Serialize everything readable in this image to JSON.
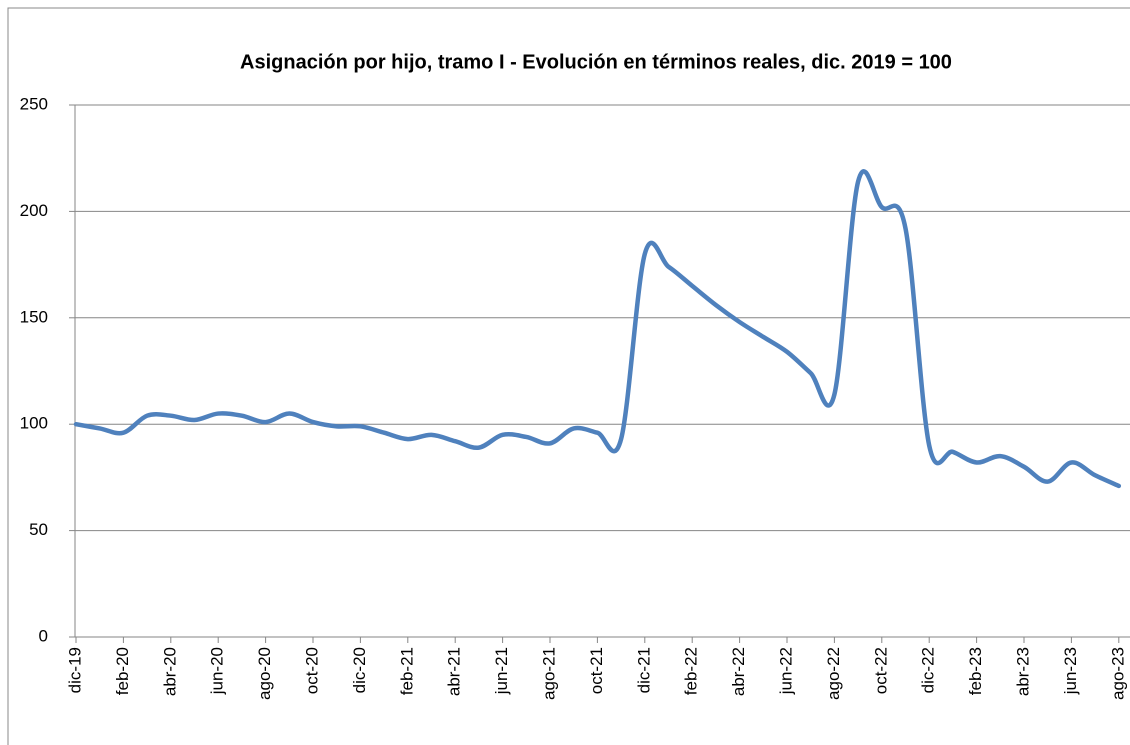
{
  "chart_data": {
    "type": "line",
    "title": "Asignación por hijo, tramo I - Evolución en términos reales, dic. 2019 = 100",
    "categories": [
      "dic-19",
      null,
      "feb-20",
      null,
      "abr-20",
      null,
      "jun-20",
      null,
      "ago-20",
      null,
      "oct-20",
      null,
      "dic-20",
      null,
      "feb-21",
      null,
      "abr-21",
      null,
      "jun-21",
      null,
      "ago-21",
      null,
      "oct-21",
      null,
      "dic-21",
      null,
      "feb-22",
      null,
      "abr-22",
      null,
      "jun-22",
      null,
      "ago-22",
      null,
      "oct-22",
      null,
      "dic-22",
      null,
      "feb-23",
      null,
      "abr-23",
      null,
      "jun-23",
      null,
      "ago-23"
    ],
    "series": [
      {
        "name": "Asignación por hijo, tramo I",
        "color": "#4f81bd",
        "values": [
          100,
          98,
          96,
          104,
          104,
          102,
          105,
          104,
          101,
          105,
          101,
          99,
          99,
          96,
          93,
          95,
          92,
          89,
          95,
          94,
          91,
          98,
          96,
          93,
          180,
          174,
          165,
          156,
          148,
          141,
          134,
          124,
          114,
          214,
          202,
          192,
          90,
          87,
          82,
          85,
          80,
          73,
          82,
          76,
          71
        ]
      }
    ],
    "ylim": [
      0,
      250
    ],
    "yticks": [
      0,
      50,
      100,
      150,
      200,
      250
    ],
    "grid": true
  }
}
